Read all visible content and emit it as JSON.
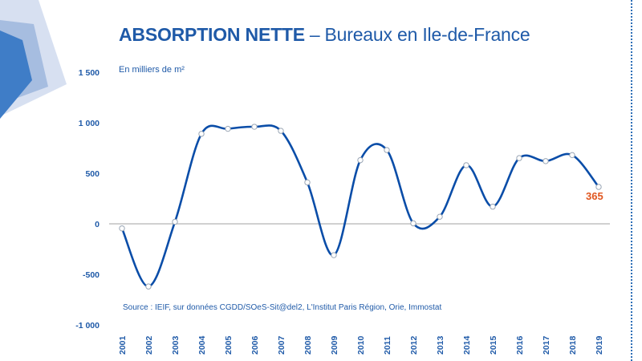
{
  "header": {
    "title_bold": "ABSORPTION NETTE",
    "title_separator": "–",
    "title_rest": "Bureaux en Ile-de-France"
  },
  "unit_label": "En milliers de m²",
  "source": "Source : IEIF, sur données CGDD/SOeS-Sit@del2, L'Institut Paris Région, Orie, Immostat",
  "last_value_label": "365",
  "colors": {
    "line": "#0a4da8",
    "text": "#1f5aa8",
    "highlight": "#e0561f",
    "marker_fill": "#ffffff",
    "marker_stroke": "#9aa6b5",
    "axis": "#c0c0c0"
  },
  "chart_data": {
    "type": "line",
    "x": [
      "2001",
      "2002",
      "2003",
      "2004",
      "2005",
      "2006",
      "2007",
      "2008",
      "2009",
      "2010",
      "2011",
      "2012",
      "2013",
      "2014",
      "2015",
      "2016",
      "2017",
      "2018",
      "2019"
    ],
    "series": [
      {
        "values": [
          -45,
          -620,
          20,
          890,
          940,
          960,
          920,
          410,
          -310,
          630,
          730,
          5,
          70,
          580,
          170,
          650,
          620,
          680,
          365
        ]
      }
    ],
    "ylim": [
      -1000,
      1500
    ],
    "yticks": [
      -1000,
      -500,
      0,
      500,
      1000,
      1500
    ],
    "ytick_labels": [
      "-1 000",
      "-500",
      "0",
      "500",
      "1 000",
      "1 500"
    ],
    "xlabel": "",
    "ylabel": "En milliers de m²",
    "smooth": true,
    "grid": false
  }
}
